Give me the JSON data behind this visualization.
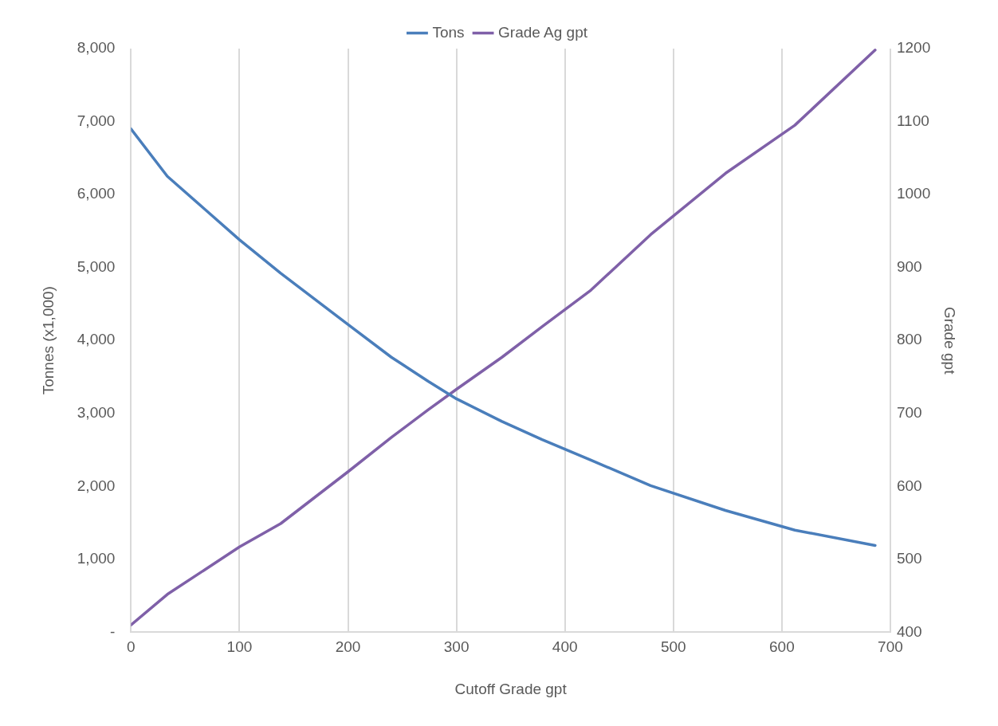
{
  "chart_data": {
    "type": "line",
    "xlabel": "Cutoff Grade gpt",
    "ylabel": "Tonnes (x1,000)",
    "y2label": "Grade gpt",
    "x": [
      0,
      33.5,
      100,
      138,
      200,
      240,
      274,
      300,
      342,
      379,
      424,
      479,
      548,
      612,
      686
    ],
    "series": [
      {
        "name": "Tons",
        "color": "#4a7ebb",
        "values": [
          6900,
          6250,
          5380,
          4920,
          4220,
          3770,
          3440,
          3200,
          2890,
          2640,
          2360,
          2010,
          1670,
          1400,
          1190
        ]
      },
      {
        "name": "Grade Ag gpt",
        "color": "#7f60a8",
        "axis": "y2",
        "values": [
          410,
          452,
          517,
          549,
          620,
          667,
          705,
          733,
          777,
          819,
          869,
          945,
          1029,
          1095,
          1198
        ]
      }
    ],
    "xlim": [
      0,
      700
    ],
    "xticks": [
      0,
      100,
      200,
      300,
      400,
      500,
      600,
      700
    ],
    "ylim": [
      0,
      8000
    ],
    "yticks": [
      {
        "value": 0,
        "label": "-"
      },
      {
        "value": 1000,
        "label": "1,000"
      },
      {
        "value": 2000,
        "label": "2,000"
      },
      {
        "value": 3000,
        "label": "3,000"
      },
      {
        "value": 4000,
        "label": "4,000"
      },
      {
        "value": 5000,
        "label": "5,000"
      },
      {
        "value": 6000,
        "label": "6,000"
      },
      {
        "value": 7000,
        "label": "7,000"
      },
      {
        "value": 8000,
        "label": "8,000"
      }
    ],
    "y2lim": [
      400,
      1200
    ],
    "y2ticks": [
      400,
      500,
      600,
      700,
      800,
      900,
      1000,
      1100,
      1200
    ],
    "grid": "x",
    "legend": "top",
    "marker": "none",
    "line_style": "solid"
  }
}
